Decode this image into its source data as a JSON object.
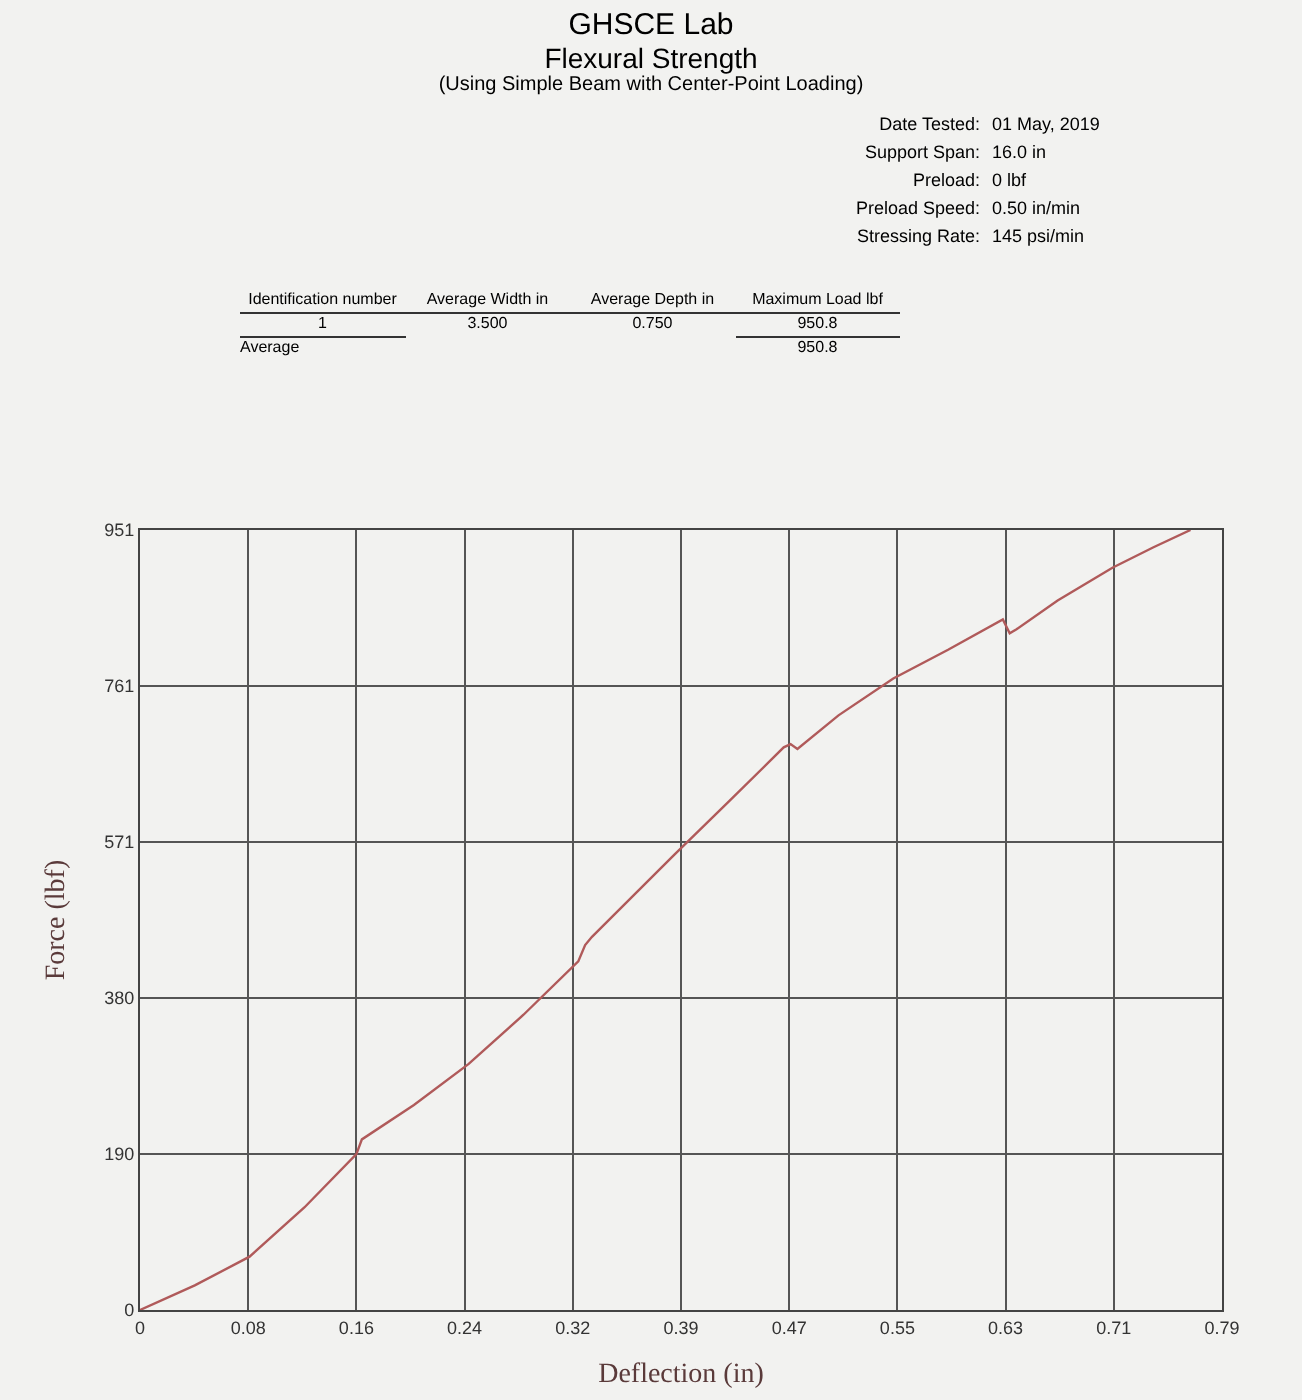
{
  "chart_data": {
    "type": "line",
    "title": "GHSCE Lab",
    "subtitle": "Flexural Strength",
    "xlabel": "Deflection (in)",
    "ylabel": "Force (lbf)",
    "annotations": [
      "(Using Simple Beam with Center-Point Loading)",
      "Date Tested:  01 May, 2019",
      "Support Span:  16.0 in",
      "Preload:  0 lbf",
      "Preload Speed:  0.50 in/min",
      "Stressing Rate:  145 psi/min",
      "Identification number",
      "Average Width in",
      "Average Depth in",
      "Maximum Load lbf",
      "1",
      "3.500",
      "0.750",
      "950.8",
      "Average",
      "950.8"
    ],
    "x": [
      0,
      0.04,
      0.08,
      0.12,
      0.158,
      0.162,
      0.2,
      0.24,
      0.28,
      0.32,
      0.325,
      0.33,
      0.36,
      0.39,
      0.43,
      0.47,
      0.475,
      0.48,
      0.51,
      0.55,
      0.59,
      0.63,
      0.635,
      0.64,
      0.67,
      0.71,
      0.74,
      0.767
    ],
    "series": [
      {
        "color": "#b05a5a",
        "values": [
          0,
          30,
          65,
          125,
          190,
          208,
          250,
          300,
          360,
          425,
          445,
          455,
          505,
          555,
          620,
          686,
          690,
          684,
          725,
          770,
          805,
          842,
          825,
          830,
          865,
          905,
          930,
          951
        ]
      }
    ],
    "xlim": [
      0,
      0.79
    ],
    "xticks": [
      0,
      {
        "value": 0.079,
        "label": "0.08"
      },
      {
        "value": 0.158,
        "label": "0.16"
      },
      {
        "value": 0.237,
        "label": "0.24"
      },
      {
        "value": 0.316,
        "label": "0.32"
      },
      {
        "value": 0.395,
        "label": "0.39"
      },
      {
        "value": 0.474,
        "label": "0.47"
      },
      {
        "value": 0.553,
        "label": "0.55"
      },
      {
        "value": 0.632,
        "label": "0.63"
      },
      {
        "value": 0.711,
        "label": "0.71"
      },
      0.79
    ],
    "ylim": [
      0,
      951
    ],
    "yticks": [
      0,
      {
        "value": 190.2,
        "label": "190"
      },
      {
        "value": 380.4,
        "label": "380"
      },
      {
        "value": 570.6,
        "label": "571"
      },
      {
        "value": 760.8,
        "label": "761"
      },
      951
    ],
    "grid": true,
    "marker": "none",
    "line_style": "solid"
  }
}
